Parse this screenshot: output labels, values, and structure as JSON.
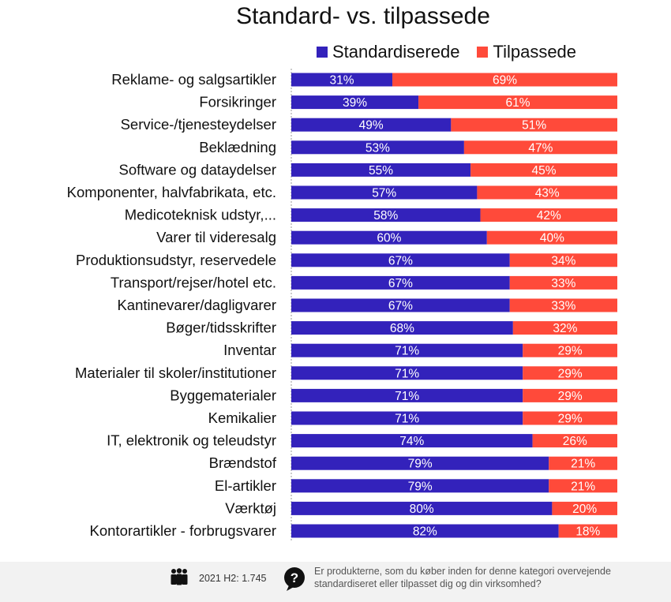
{
  "chart_data": {
    "type": "bar",
    "orientation": "horizontal",
    "stacked": true,
    "title": "Standard- vs. tilpassede",
    "xlim": [
      0,
      100
    ],
    "legend_position": "top",
    "series": [
      {
        "name": "Standardiserede",
        "color": "#3322bb",
        "values": [
          31,
          39,
          49,
          53,
          55,
          57,
          58,
          60,
          67,
          67,
          67,
          68,
          71,
          71,
          71,
          71,
          74,
          79,
          79,
          80,
          82
        ]
      },
      {
        "name": "Tilpassede",
        "color": "#ff4a3a",
        "values": [
          69,
          61,
          51,
          47,
          45,
          43,
          42,
          40,
          34,
          33,
          33,
          32,
          29,
          29,
          29,
          29,
          26,
          21,
          21,
          20,
          18
        ]
      }
    ],
    "categories": [
      "Reklame- og salgsartikler",
      "Forsikringer",
      "Service-/tjenesteydelser",
      "Beklædning",
      "Software og dataydelser",
      "Komponenter, halvfabrikata, etc.",
      "Medicoteknisk udstyr,...",
      "Varer til videresalg",
      "Produktionsudstyr, reservedele",
      "Transport/rejser/hotel etc.",
      "Kantinevarer/dagligvarer",
      "Bøger/tidsskrifter",
      "Inventar",
      "Materialer til skoler/institutioner",
      "Byggematerialer",
      "Kemikalier",
      "IT, elektronik og teleudstyr",
      "Brændstof",
      "El-artikler",
      "Værktøj",
      "Kontorartikler - forbrugsvarer"
    ],
    "value_labels": [
      [
        "31%",
        "69%"
      ],
      [
        "39%",
        "61%"
      ],
      [
        "49%",
        "51%"
      ],
      [
        "53%",
        "47%"
      ],
      [
        "55%",
        "45%"
      ],
      [
        "57%",
        "43%"
      ],
      [
        "58%",
        "42%"
      ],
      [
        "60%",
        "40%"
      ],
      [
        "67%",
        "34%"
      ],
      [
        "67%",
        "33%"
      ],
      [
        "67%",
        "33%"
      ],
      [
        "68%",
        "32%"
      ],
      [
        "71%",
        "29%"
      ],
      [
        "71%",
        "29%"
      ],
      [
        "71%",
        "29%"
      ],
      [
        "71%",
        "29%"
      ],
      [
        "74%",
        "26%"
      ],
      [
        "79%",
        "21%"
      ],
      [
        "79%",
        "21%"
      ],
      [
        "80%",
        "20%"
      ],
      [
        "82%",
        "18%"
      ]
    ]
  },
  "footer": {
    "sample_text": "2021 H2: 1.745",
    "question_line1": "Er produkterne, som du køber inden for denne kategori overvejende",
    "question_line2": "standardiseret eller tilpasset dig og din virksomhed?",
    "people_icon": "people-icon",
    "question_icon": "question-bubble-icon"
  }
}
